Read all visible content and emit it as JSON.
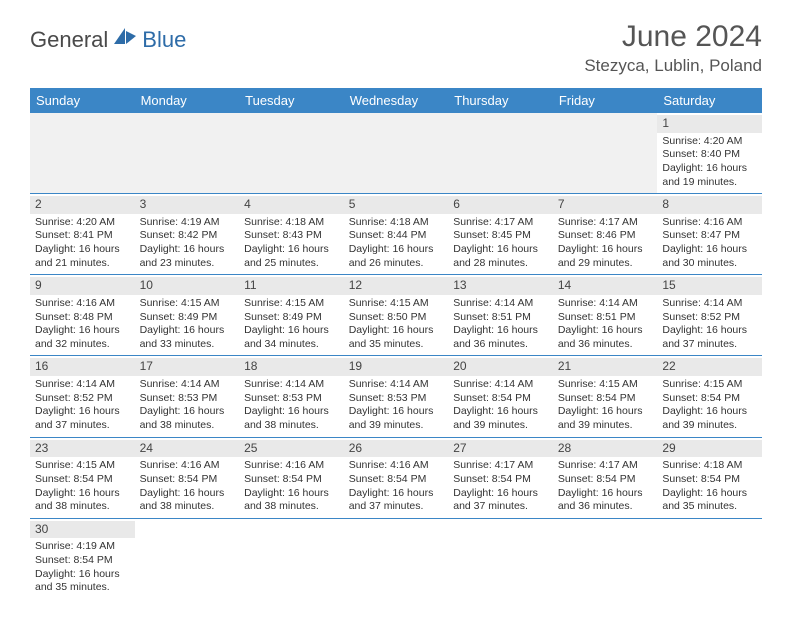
{
  "brand": {
    "text1": "General",
    "text2": "Blue",
    "color1": "#4a4a4a",
    "color2": "#2e6ca8",
    "sail_color": "#2e6ca8"
  },
  "header": {
    "title": "June 2024",
    "location": "Stezyca, Lublin, Poland"
  },
  "colors": {
    "header_bg": "#3b86c6",
    "header_text": "#ffffff",
    "daynum_bg": "#e9e9e9",
    "empty_bg": "#f1f1f1",
    "border": "#3b86c6",
    "text": "#333333"
  },
  "weekdays": [
    "Sunday",
    "Monday",
    "Tuesday",
    "Wednesday",
    "Thursday",
    "Friday",
    "Saturday"
  ],
  "weeks": [
    [
      null,
      null,
      null,
      null,
      null,
      null,
      {
        "day": "1",
        "sunrise": "4:20 AM",
        "sunset": "8:40 PM",
        "daylight": "16 hours and 19 minutes."
      }
    ],
    [
      {
        "day": "2",
        "sunrise": "4:20 AM",
        "sunset": "8:41 PM",
        "daylight": "16 hours and 21 minutes."
      },
      {
        "day": "3",
        "sunrise": "4:19 AM",
        "sunset": "8:42 PM",
        "daylight": "16 hours and 23 minutes."
      },
      {
        "day": "4",
        "sunrise": "4:18 AM",
        "sunset": "8:43 PM",
        "daylight": "16 hours and 25 minutes."
      },
      {
        "day": "5",
        "sunrise": "4:18 AM",
        "sunset": "8:44 PM",
        "daylight": "16 hours and 26 minutes."
      },
      {
        "day": "6",
        "sunrise": "4:17 AM",
        "sunset": "8:45 PM",
        "daylight": "16 hours and 28 minutes."
      },
      {
        "day": "7",
        "sunrise": "4:17 AM",
        "sunset": "8:46 PM",
        "daylight": "16 hours and 29 minutes."
      },
      {
        "day": "8",
        "sunrise": "4:16 AM",
        "sunset": "8:47 PM",
        "daylight": "16 hours and 30 minutes."
      }
    ],
    [
      {
        "day": "9",
        "sunrise": "4:16 AM",
        "sunset": "8:48 PM",
        "daylight": "16 hours and 32 minutes."
      },
      {
        "day": "10",
        "sunrise": "4:15 AM",
        "sunset": "8:49 PM",
        "daylight": "16 hours and 33 minutes."
      },
      {
        "day": "11",
        "sunrise": "4:15 AM",
        "sunset": "8:49 PM",
        "daylight": "16 hours and 34 minutes."
      },
      {
        "day": "12",
        "sunrise": "4:15 AM",
        "sunset": "8:50 PM",
        "daylight": "16 hours and 35 minutes."
      },
      {
        "day": "13",
        "sunrise": "4:14 AM",
        "sunset": "8:51 PM",
        "daylight": "16 hours and 36 minutes."
      },
      {
        "day": "14",
        "sunrise": "4:14 AM",
        "sunset": "8:51 PM",
        "daylight": "16 hours and 36 minutes."
      },
      {
        "day": "15",
        "sunrise": "4:14 AM",
        "sunset": "8:52 PM",
        "daylight": "16 hours and 37 minutes."
      }
    ],
    [
      {
        "day": "16",
        "sunrise": "4:14 AM",
        "sunset": "8:52 PM",
        "daylight": "16 hours and 37 minutes."
      },
      {
        "day": "17",
        "sunrise": "4:14 AM",
        "sunset": "8:53 PM",
        "daylight": "16 hours and 38 minutes."
      },
      {
        "day": "18",
        "sunrise": "4:14 AM",
        "sunset": "8:53 PM",
        "daylight": "16 hours and 38 minutes."
      },
      {
        "day": "19",
        "sunrise": "4:14 AM",
        "sunset": "8:53 PM",
        "daylight": "16 hours and 39 minutes."
      },
      {
        "day": "20",
        "sunrise": "4:14 AM",
        "sunset": "8:54 PM",
        "daylight": "16 hours and 39 minutes."
      },
      {
        "day": "21",
        "sunrise": "4:15 AM",
        "sunset": "8:54 PM",
        "daylight": "16 hours and 39 minutes."
      },
      {
        "day": "22",
        "sunrise": "4:15 AM",
        "sunset": "8:54 PM",
        "daylight": "16 hours and 39 minutes."
      }
    ],
    [
      {
        "day": "23",
        "sunrise": "4:15 AM",
        "sunset": "8:54 PM",
        "daylight": "16 hours and 38 minutes."
      },
      {
        "day": "24",
        "sunrise": "4:16 AM",
        "sunset": "8:54 PM",
        "daylight": "16 hours and 38 minutes."
      },
      {
        "day": "25",
        "sunrise": "4:16 AM",
        "sunset": "8:54 PM",
        "daylight": "16 hours and 38 minutes."
      },
      {
        "day": "26",
        "sunrise": "4:16 AM",
        "sunset": "8:54 PM",
        "daylight": "16 hours and 37 minutes."
      },
      {
        "day": "27",
        "sunrise": "4:17 AM",
        "sunset": "8:54 PM",
        "daylight": "16 hours and 37 minutes."
      },
      {
        "day": "28",
        "sunrise": "4:17 AM",
        "sunset": "8:54 PM",
        "daylight": "16 hours and 36 minutes."
      },
      {
        "day": "29",
        "sunrise": "4:18 AM",
        "sunset": "8:54 PM",
        "daylight": "16 hours and 35 minutes."
      }
    ],
    [
      {
        "day": "30",
        "sunrise": "4:19 AM",
        "sunset": "8:54 PM",
        "daylight": "16 hours and 35 minutes."
      },
      null,
      null,
      null,
      null,
      null,
      null
    ]
  ],
  "labels": {
    "sunrise": "Sunrise:",
    "sunset": "Sunset:",
    "daylight": "Daylight:"
  }
}
